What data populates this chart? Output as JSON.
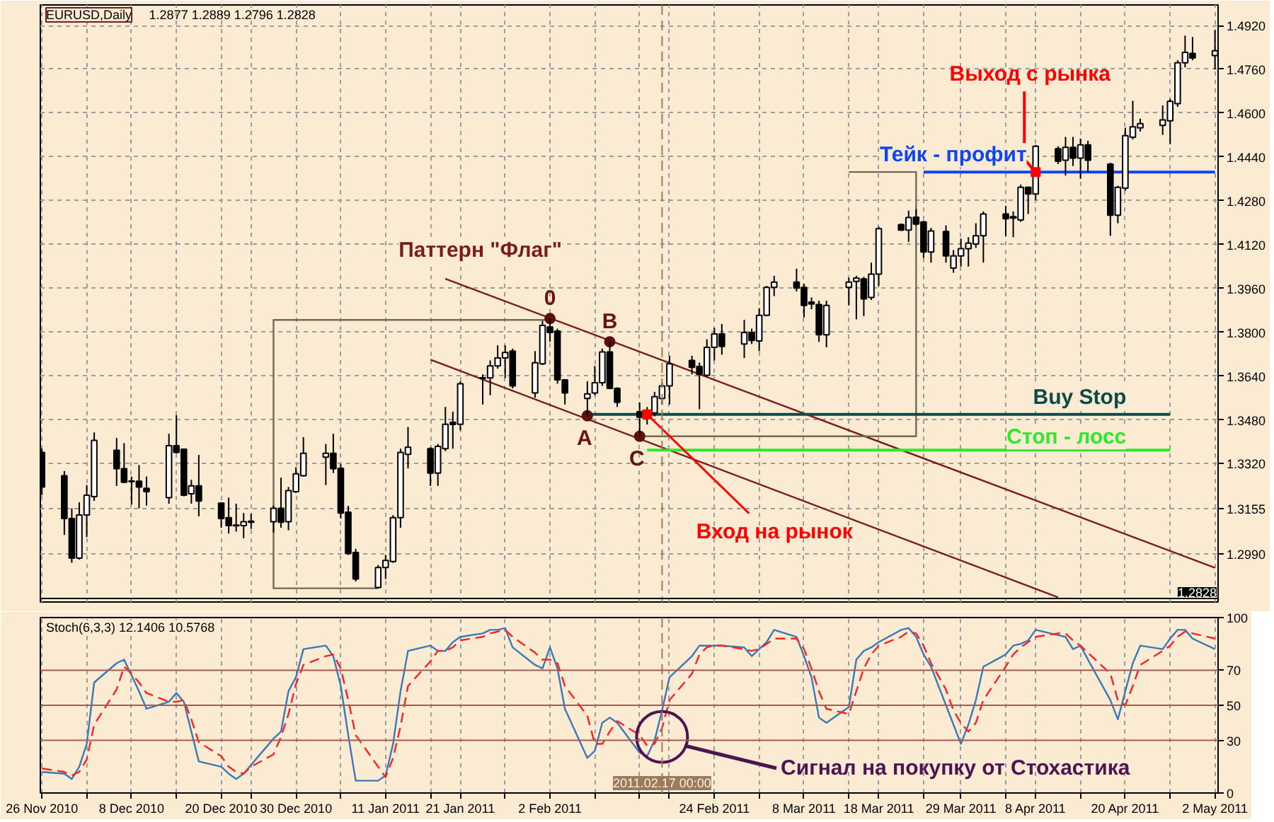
{
  "chart_data": [
    {
      "type": "candlestick",
      "title": "EURUSD,Daily",
      "subtitle": "1.2877 1.2889 1.2796 1.2828",
      "x": [
        "2010-11-26",
        "2010-11-29",
        "2010-11-30",
        "2010-12-01",
        "2010-12-02",
        "2010-12-03",
        "2010-12-06",
        "2010-12-07",
        "2010-12-08",
        "2010-12-09",
        "2010-12-10",
        "2010-12-13",
        "2010-12-14",
        "2010-12-15",
        "2010-12-16",
        "2010-12-17",
        "2010-12-20",
        "2010-12-21",
        "2010-12-22",
        "2010-12-23",
        "2010-12-24",
        "2010-12-27",
        "2010-12-28",
        "2010-12-29",
        "2010-12-30",
        "2010-12-31",
        "2011-01-03",
        "2011-01-04",
        "2011-01-05",
        "2011-01-06",
        "2011-01-07",
        "2011-01-10",
        "2011-01-11",
        "2011-01-12",
        "2011-01-13",
        "2011-01-14",
        "2011-01-17",
        "2011-01-18",
        "2011-01-19",
        "2011-01-20",
        "2011-01-21",
        "2011-01-24",
        "2011-01-25",
        "2011-01-26",
        "2011-01-27",
        "2011-01-28",
        "2011-01-31",
        "2011-02-01",
        "2011-02-02",
        "2011-02-03",
        "2011-02-04",
        "2011-02-07",
        "2011-02-08",
        "2011-02-09",
        "2011-02-10",
        "2011-02-11",
        "2011-02-14",
        "2011-02-15",
        "2011-02-16",
        "2011-02-17",
        "2011-02-18",
        "2011-02-21",
        "2011-02-22",
        "2011-02-23",
        "2011-02-24",
        "2011-02-25",
        "2011-02-28",
        "2011-03-01",
        "2011-03-02",
        "2011-03-03",
        "2011-03-04",
        "2011-03-07",
        "2011-03-08",
        "2011-03-09",
        "2011-03-10",
        "2011-03-11",
        "2011-03-14",
        "2011-03-15",
        "2011-03-16",
        "2011-03-17",
        "2011-03-18",
        "2011-03-21",
        "2011-03-22",
        "2011-03-23",
        "2011-03-24",
        "2011-03-25",
        "2011-03-27",
        "2011-03-28",
        "2011-03-29",
        "2011-03-30",
        "2011-03-31",
        "2011-04-01",
        "2011-04-04",
        "2011-04-05",
        "2011-04-06",
        "2011-04-07",
        "2011-04-08",
        "2011-04-11",
        "2011-04-12",
        "2011-04-13",
        "2011-04-14",
        "2011-04-15",
        "2011-04-18",
        "2011-04-19",
        "2011-04-20",
        "2011-04-21",
        "2011-04-22",
        "2011-04-25",
        "2011-04-26",
        "2011-04-27",
        "2011-04-28",
        "2011-04-29",
        "2011-05-02"
      ],
      "ohlc": [
        [
          1.3361,
          1.3375,
          1.3205,
          1.3235
        ],
        [
          1.3276,
          1.3293,
          1.306,
          1.312
        ],
        [
          1.312,
          1.3157,
          1.2958,
          1.2975
        ],
        [
          1.2975,
          1.3179,
          1.297,
          1.3133
        ],
        [
          1.3133,
          1.3242,
          1.3052,
          1.3205
        ],
        [
          1.32,
          1.3434,
          1.3184,
          1.3405
        ],
        [
          1.3369,
          1.3414,
          1.3239,
          1.3302
        ],
        [
          1.3302,
          1.3395,
          1.3249,
          1.3252
        ],
        [
          1.3257,
          1.3273,
          1.3171,
          1.3255
        ],
        [
          1.3256,
          1.3315,
          1.3157,
          1.3235
        ],
        [
          1.323,
          1.3273,
          1.3167,
          1.3218
        ],
        [
          1.3196,
          1.3429,
          1.3174,
          1.3386
        ],
        [
          1.3386,
          1.3497,
          1.3358,
          1.3361
        ],
        [
          1.3373,
          1.3375,
          1.3201,
          1.3205
        ],
        [
          1.321,
          1.3261,
          1.3174,
          1.3239
        ],
        [
          1.3239,
          1.3352,
          1.3128,
          1.3184
        ],
        [
          1.3176,
          1.3179,
          1.3086,
          1.312
        ],
        [
          1.3123,
          1.3196,
          1.3065,
          1.3094
        ],
        [
          1.3096,
          1.3174,
          1.3072,
          1.3093
        ],
        [
          1.3094,
          1.314,
          1.3048,
          1.3108
        ],
        [
          1.3106,
          1.3137,
          1.3082,
          1.311
        ],
        [
          1.3108,
          1.3167,
          1.3069,
          1.3157
        ],
        [
          1.3157,
          1.3269,
          1.3086,
          1.3106
        ],
        [
          1.3108,
          1.3235,
          1.3077,
          1.3222
        ],
        [
          1.3218,
          1.3307,
          1.3213,
          1.3283
        ],
        [
          1.3276,
          1.3417,
          1.3273,
          1.3358
        ],
        [
          1.3344,
          1.3392,
          1.3242,
          1.3358
        ],
        [
          1.3358,
          1.3429,
          1.3286,
          1.3302
        ],
        [
          1.3303,
          1.3318,
          1.312,
          1.314
        ],
        [
          1.3143,
          1.3166,
          1.2987,
          1.2992
        ],
        [
          1.2996,
          1.3009,
          1.289,
          1.2899
        ],
        [
          1.2868,
          1.295,
          1.2865,
          1.2941
        ],
        [
          1.2941,
          1.2987,
          1.2899,
          1.2967
        ],
        [
          1.2963,
          1.3132,
          1.2958,
          1.3123
        ],
        [
          1.3123,
          1.3375,
          1.3086,
          1.3361
        ],
        [
          1.3354,
          1.3454,
          1.3303,
          1.338
        ],
        [
          1.3375,
          1.338,
          1.3239,
          1.3286
        ],
        [
          1.3286,
          1.3392,
          1.3239,
          1.3383
        ],
        [
          1.3375,
          1.3527,
          1.3366,
          1.3464
        ],
        [
          1.3471,
          1.351,
          1.3375,
          1.3463
        ],
        [
          1.3464,
          1.3621,
          1.3442,
          1.3612
        ],
        [
          1.3634,
          1.3646,
          1.3536,
          1.3631
        ],
        [
          1.3633,
          1.3697,
          1.357,
          1.3677
        ],
        [
          1.3677,
          1.3752,
          1.3667,
          1.3706
        ],
        [
          1.3706,
          1.3752,
          1.3633,
          1.3726
        ],
        [
          1.3731,
          1.374,
          1.3595,
          1.3604
        ],
        [
          1.3578,
          1.3731,
          1.3561,
          1.3689
        ],
        [
          1.3685,
          1.3842,
          1.368,
          1.3825
        ],
        [
          1.3819,
          1.385,
          1.3765,
          1.3799
        ],
        [
          1.3804,
          1.3813,
          1.3612,
          1.3626
        ],
        [
          1.3626,
          1.3629,
          1.3536,
          1.3578
        ],
        [
          1.3558,
          1.3621,
          1.3495,
          1.3575
        ],
        [
          1.3578,
          1.3677,
          1.357,
          1.3616
        ],
        [
          1.3616,
          1.374,
          1.3604,
          1.3728
        ],
        [
          1.3728,
          1.3765,
          1.3592,
          1.3595
        ],
        [
          1.3595,
          1.3599,
          1.3527,
          1.3544
        ],
        [
          1.351,
          1.3544,
          1.342,
          1.349
        ],
        [
          1.3493,
          1.3527,
          1.3463,
          1.3507
        ],
        [
          1.3505,
          1.3582,
          1.3493,
          1.3565
        ],
        [
          1.3558,
          1.3616,
          1.3536,
          1.3604
        ],
        [
          1.3604,
          1.3714,
          1.3536,
          1.3685
        ],
        [
          1.3697,
          1.3714,
          1.3646,
          1.3672
        ],
        [
          1.3675,
          1.3689,
          1.3519,
          1.3646
        ],
        [
          1.3643,
          1.3774,
          1.3638,
          1.3745
        ],
        [
          1.3745,
          1.3816,
          1.3697,
          1.3794
        ],
        [
          1.3794,
          1.383,
          1.3718,
          1.3748
        ],
        [
          1.3757,
          1.3845,
          1.3706,
          1.3799
        ],
        [
          1.3799,
          1.3813,
          1.3757,
          1.377
        ],
        [
          1.3768,
          1.3888,
          1.3731,
          1.3862
        ],
        [
          1.3862,
          1.3969,
          1.3859,
          1.3964
        ],
        [
          1.3964,
          1.4006,
          1.3932,
          1.3983
        ],
        [
          1.3983,
          1.4032,
          1.3949,
          1.3961
        ],
        [
          1.3964,
          1.3977,
          1.3854,
          1.3898
        ],
        [
          1.391,
          1.3927,
          1.3884,
          1.3903
        ],
        [
          1.3901,
          1.3915,
          1.3765,
          1.3791
        ],
        [
          1.3791,
          1.3915,
          1.3745,
          1.3898
        ],
        [
          1.3964,
          1.3999,
          1.3898,
          1.3983
        ],
        [
          1.3986,
          1.4006,
          1.3847,
          1.3998
        ],
        [
          1.3995,
          1.4002,
          1.3859,
          1.3922
        ],
        [
          1.3927,
          1.4054,
          1.3918,
          1.4012
        ],
        [
          1.4012,
          1.4185,
          1.3969,
          1.4178
        ],
        [
          1.4193,
          1.4197,
          1.417,
          1.4173
        ],
        [
          1.4173,
          1.4244,
          1.413,
          1.4219
        ],
        [
          1.422,
          1.4249,
          1.419,
          1.4195
        ],
        [
          1.4203,
          1.4207,
          1.4071,
          1.4093
        ],
        [
          1.4093,
          1.4181,
          1.4054,
          1.417
        ],
        [
          1.4168,
          1.419,
          1.4054,
          1.4079
        ],
        [
          1.4034,
          1.41,
          1.4017,
          1.4079
        ],
        [
          1.4079,
          1.4142,
          1.404,
          1.4105
        ],
        [
          1.4105,
          1.4147,
          1.404,
          1.4125
        ],
        [
          1.4122,
          1.4198,
          1.4108,
          1.4152
        ],
        [
          1.4152,
          1.4241,
          1.4054,
          1.4232
        ],
        [
          1.4232,
          1.4261,
          1.4151,
          1.4214
        ],
        [
          1.4222,
          1.4241,
          1.4147,
          1.4217
        ],
        [
          1.421,
          1.4339,
          1.4203,
          1.4329
        ],
        [
          1.4329,
          1.4332,
          1.4232,
          1.4305
        ],
        [
          1.4305,
          1.4484,
          1.4283,
          1.4479
        ],
        [
          1.447,
          1.4479,
          1.4414,
          1.4424
        ],
        [
          1.4428,
          1.4513,
          1.4372,
          1.4475
        ],
        [
          1.4475,
          1.4513,
          1.4407,
          1.4436
        ],
        [
          1.4436,
          1.4507,
          1.436,
          1.4484
        ],
        [
          1.4484,
          1.4499,
          1.4385,
          1.4428
        ],
        [
          1.4414,
          1.4419,
          1.4152,
          1.4227
        ],
        [
          1.4227,
          1.4334,
          1.4198,
          1.4329
        ],
        [
          1.4326,
          1.4547,
          1.4317,
          1.4518
        ],
        [
          1.4512,
          1.4645,
          1.4504,
          1.455
        ],
        [
          1.4546,
          1.458,
          1.4533,
          1.4562
        ],
        [
          1.4555,
          1.4628,
          1.4521,
          1.4575
        ],
        [
          1.4572,
          1.4652,
          1.4487,
          1.4643
        ],
        [
          1.4635,
          1.4793,
          1.4623,
          1.4784
        ],
        [
          1.4784,
          1.4883,
          1.4767,
          1.4822
        ],
        [
          1.4818,
          1.4878,
          1.4793,
          1.4801
        ],
        [
          1.481,
          1.4903,
          1.4759,
          1.4828
        ]
      ],
      "xlim": [
        "2010-11-25T19:00",
        "2011-05-02T10:00"
      ],
      "xticks": [
        {
          "value": "2010-11-26",
          "label": null
        },
        {
          "value": "2010-12-02",
          "label": null
        },
        {
          "value": "2010-12-08",
          "label": null
        },
        {
          "value": "2010-12-14",
          "label": null
        },
        {
          "value": "2010-12-20",
          "label": null
        },
        {
          "value": "2010-12-24",
          "label": null
        },
        {
          "value": "2010-12-30",
          "label": null
        },
        {
          "value": "2011-01-05",
          "label": null
        },
        {
          "value": "2011-01-11",
          "label": null
        },
        {
          "value": "2011-01-17",
          "label": null
        },
        {
          "value": "2011-01-21",
          "label": null
        },
        {
          "value": "2011-01-27",
          "label": null
        },
        {
          "value": "2011-02-02",
          "label": null
        },
        {
          "value": "2011-02-08",
          "label": null
        },
        {
          "value": "2011-02-14",
          "label": null
        },
        {
          "value": "2011-02-18",
          "label": null
        },
        {
          "value": "2011-02-24",
          "label": null
        },
        {
          "value": "2011-03-02",
          "label": null
        },
        {
          "value": "2011-03-08",
          "label": null
        },
        {
          "value": "2011-03-14",
          "label": null
        },
        {
          "value": "2011-03-18",
          "label": null
        },
        {
          "value": "2011-03-24",
          "label": null
        },
        {
          "value": "2011-03-29",
          "label": null
        },
        {
          "value": "2011-04-04",
          "label": null
        },
        {
          "value": "2011-04-08",
          "label": null
        },
        {
          "value": "2011-04-14",
          "label": null
        },
        {
          "value": "2011-04-20",
          "label": null
        },
        {
          "value": "2011-04-26",
          "label": null
        },
        {
          "value": "2011-05-02",
          "label": null
        }
      ],
      "ylim": [
        1.2815,
        1.4995
      ],
      "yticks": [
        {
          "value": 1.492,
          "label": "1.4920"
        },
        {
          "value": 1.476,
          "label": "1.4760"
        },
        {
          "value": 1.46,
          "label": "1.4600"
        },
        {
          "value": 1.444,
          "label": "1.4440"
        },
        {
          "value": 1.428,
          "label": "1.4280"
        },
        {
          "value": 1.412,
          "label": "1.4120"
        },
        {
          "value": 1.396,
          "label": "1.3960"
        },
        {
          "value": 1.38,
          "label": "1.3800"
        },
        {
          "value": 1.364,
          "label": "1.3640"
        },
        {
          "value": 1.348,
          "label": "1.3480"
        },
        {
          "value": 1.332,
          "label": "1.3320"
        },
        {
          "value": 1.3155,
          "label": "1.3155"
        },
        {
          "value": 1.299,
          "label": "1.2990"
        }
      ],
      "grid": true,
      "tick_labels": "y",
      "series": [
        {
          "name": "Паттерн \"Флаг\"",
          "type": "line",
          "color": "#7b1c1c",
          "x": [
            "2011-01-19",
            "2011-05-02"
          ],
          "values": [
            1.3995,
            1.294
          ]
        },
        {
          "type": "line",
          "color": "#7b1c1c",
          "x": [
            "2011-01-17",
            "2011-04-11"
          ],
          "values": [
            1.37,
            1.2832
          ]
        },
        {
          "type": "line",
          "color": "#6f6b55",
          "x": [
            "2011-02-02",
            "2010-12-27",
            "2010-12-27",
            "2011-01-10"
          ],
          "values": [
            1.3845,
            1.3845,
            1.2865,
            1.2865
          ]
        },
        {
          "type": "line",
          "color": "#6f6b55",
          "x": [
            "2011-02-14",
            "2011-03-23",
            "2011-03-23",
            "2011-03-14"
          ],
          "values": [
            1.342,
            1.342,
            1.4385,
            1.4385
          ]
        },
        {
          "name": "Buy Stop",
          "type": "line",
          "color": "#0d4a4a",
          "x": [
            "2011-02-07",
            "2011-04-26"
          ],
          "values": [
            1.35,
            1.35
          ]
        },
        {
          "name": "Стоп - лосс",
          "type": "line",
          "color": "#2ee82e",
          "x": [
            "2011-02-15",
            "2011-04-26"
          ],
          "values": [
            1.337,
            1.337
          ]
        },
        {
          "name": "Тейк - профит",
          "type": "line",
          "color": "#0b45f5",
          "x": [
            "2011-03-24",
            "2011-05-02"
          ],
          "values": [
            1.4385,
            1.4385
          ]
        },
        {
          "type": "scatter",
          "marker": "circle",
          "color": "#5c0f0f",
          "x": [
            "2011-02-02",
            "2011-02-10",
            "2011-02-07",
            "2011-02-14"
          ],
          "values": [
            1.385,
            1.3765,
            1.3495,
            1.342
          ]
        }
      ],
      "annotations": [
        {
          "text": "0",
          "x": "2011-02-02",
          "y": 1.385
        },
        {
          "text": "B",
          "x": "2011-02-10",
          "y": 1.3765
        },
        {
          "text": "A",
          "x": "2011-02-07",
          "y": 1.3495
        },
        {
          "text": "C",
          "x": "2011-02-14",
          "y": 1.342
        },
        {
          "text": "Вход на рынок",
          "x": "2011-02-15",
          "y": 1.35
        },
        {
          "text": "Выход с рынка",
          "x": "2011-04-08",
          "y": 1.4385
        }
      ],
      "ref_lines": [
        {
          "axis": "x",
          "value": "2011-02-17",
          "line_style": "dashed",
          "color": "#9c7a5e"
        },
        {
          "axis": "y",
          "value": 1.2828,
          "label": "1.2828",
          "color": "#000000"
        }
      ]
    },
    {
      "type": "line",
      "title": "Stoch(6,3,3) 12.1406 10.5768",
      "x": [
        "2010-11-26",
        "2010-11-29",
        "2010-11-30",
        "2010-12-01",
        "2010-12-02",
        "2010-12-03",
        "2010-12-06",
        "2010-12-07",
        "2010-12-08",
        "2010-12-09",
        "2010-12-10",
        "2010-12-13",
        "2010-12-14",
        "2010-12-15",
        "2010-12-16",
        "2010-12-17",
        "2010-12-20",
        "2010-12-21",
        "2010-12-22",
        "2010-12-23",
        "2010-12-24",
        "2010-12-27",
        "2010-12-28",
        "2010-12-29",
        "2010-12-30",
        "2010-12-31",
        "2011-01-03",
        "2011-01-04",
        "2011-01-05",
        "2011-01-06",
        "2011-01-07",
        "2011-01-10",
        "2011-01-11",
        "2011-01-12",
        "2011-01-13",
        "2011-01-14",
        "2011-01-17",
        "2011-01-18",
        "2011-01-19",
        "2011-01-20",
        "2011-01-21",
        "2011-01-24",
        "2011-01-25",
        "2011-01-26",
        "2011-01-27",
        "2011-01-28",
        "2011-01-31",
        "2011-02-01",
        "2011-02-02",
        "2011-02-03",
        "2011-02-04",
        "2011-02-07",
        "2011-02-08",
        "2011-02-09",
        "2011-02-10",
        "2011-02-11",
        "2011-02-14",
        "2011-02-15",
        "2011-02-16",
        "2011-02-17",
        "2011-02-18",
        "2011-02-21",
        "2011-02-22",
        "2011-02-23",
        "2011-02-24",
        "2011-02-25",
        "2011-02-28",
        "2011-03-01",
        "2011-03-02",
        "2011-03-03",
        "2011-03-04",
        "2011-03-07",
        "2011-03-08",
        "2011-03-09",
        "2011-03-10",
        "2011-03-11",
        "2011-03-14",
        "2011-03-15",
        "2011-03-16",
        "2011-03-17",
        "2011-03-18",
        "2011-03-21",
        "2011-03-22",
        "2011-03-23",
        "2011-03-24",
        "2011-03-25",
        "2011-03-27",
        "2011-03-28",
        "2011-03-29",
        "2011-03-30",
        "2011-03-31",
        "2011-04-01",
        "2011-04-04",
        "2011-04-05",
        "2011-04-06",
        "2011-04-07",
        "2011-04-08",
        "2011-04-11",
        "2011-04-12",
        "2011-04-13",
        "2011-04-14",
        "2011-04-15",
        "2011-04-18",
        "2011-04-19",
        "2011-04-20",
        "2011-04-21",
        "2011-04-22",
        "2011-04-25",
        "2011-04-26",
        "2011-04-27",
        "2011-04-28",
        "2011-04-29",
        "2011-05-02"
      ],
      "series": [
        {
          "color": "#3b78b6",
          "values": [
            12,
            11,
            8,
            15,
            28,
            63,
            74,
            76,
            67,
            58,
            48,
            52,
            57,
            52,
            35,
            18,
            15,
            11,
            8,
            11,
            16,
            31,
            35,
            58,
            66,
            82,
            84,
            78,
            61,
            33,
            7,
            7,
            10,
            28,
            58,
            81,
            84,
            81,
            81,
            86,
            89,
            91,
            93,
            93,
            94,
            83,
            73,
            71,
            83,
            71,
            48,
            20,
            24,
            40,
            43,
            40,
            23,
            21,
            30,
            47,
            66,
            78,
            84,
            84,
            84,
            84,
            83,
            78,
            82,
            86,
            93,
            89,
            78,
            66,
            43,
            40,
            49,
            76,
            81,
            83,
            86,
            93,
            94,
            89,
            79,
            72,
            50,
            39,
            28,
            39,
            53,
            72,
            79,
            84,
            85,
            87,
            93,
            90,
            89,
            82,
            84,
            76,
            53,
            42,
            58,
            74,
            84,
            82,
            88,
            93,
            93,
            88,
            82
          ]
        },
        {
          "color": "#ff2020",
          "line_style": "dashed",
          "values": [
            14,
            12,
            10,
            12,
            19,
            39,
            59,
            72,
            68,
            63,
            57,
            52,
            52,
            53,
            42,
            29,
            21,
            15,
            12,
            11,
            15,
            22,
            32,
            45,
            62,
            73,
            78,
            79,
            71,
            53,
            33,
            15,
            9,
            20,
            38,
            61,
            75,
            81,
            81,
            83,
            87,
            89,
            91,
            92,
            93,
            89,
            80,
            76,
            76,
            74,
            61,
            44,
            28,
            28,
            35,
            41,
            33,
            27,
            28,
            37,
            53,
            68,
            79,
            83,
            84,
            84,
            82,
            81,
            82,
            85,
            88,
            88,
            82,
            71,
            58,
            48,
            45,
            58,
            71,
            79,
            84,
            89,
            92,
            91,
            84,
            74,
            59,
            47,
            40,
            35,
            40,
            53,
            72,
            79,
            83,
            86,
            89,
            91,
            91,
            87,
            84,
            80,
            68,
            53,
            50,
            61,
            73,
            81,
            84,
            89,
            92,
            91,
            88
          ]
        },
        {
          "type": "scatter",
          "marker": "circle",
          "color": "#4e1452",
          "x": [
            "2011-02-17"
          ],
          "values": [
            32
          ]
        }
      ],
      "xlim": [
        "2010-11-25T19:00",
        "2011-05-02T10:00"
      ],
      "xticks": [
        {
          "value": "2010-11-26",
          "label": "26 Nov 2010"
        },
        {
          "value": "2010-12-02",
          "label": null
        },
        {
          "value": "2010-12-08",
          "label": "8 Dec 2010"
        },
        {
          "value": "2010-12-14",
          "label": null
        },
        {
          "value": "2010-12-20",
          "label": "20 Dec 2010"
        },
        {
          "value": "2010-12-24",
          "label": null
        },
        {
          "value": "2010-12-30",
          "label": "30 Dec 2010"
        },
        {
          "value": "2011-01-05",
          "label": null
        },
        {
          "value": "2011-01-11",
          "label": "11 Jan 2011"
        },
        {
          "value": "2011-01-17",
          "label": null
        },
        {
          "value": "2011-01-21",
          "label": "21 Jan 2011"
        },
        {
          "value": "2011-01-27",
          "label": null
        },
        {
          "value": "2011-02-02",
          "label": "2 Feb 2011"
        },
        {
          "value": "2011-02-08",
          "label": null
        },
        {
          "value": "2011-02-14",
          "label": null
        },
        {
          "value": "2011-02-18",
          "label": null
        },
        {
          "value": "2011-02-24",
          "label": "24 Feb 2011"
        },
        {
          "value": "2011-03-02",
          "label": null
        },
        {
          "value": "2011-03-08",
          "label": "8 Mar 2011"
        },
        {
          "value": "2011-03-14",
          "label": null
        },
        {
          "value": "2011-03-18",
          "label": "18 Mar 2011"
        },
        {
          "value": "2011-03-24",
          "label": null
        },
        {
          "value": "2011-03-29",
          "label": "29 Mar 2011"
        },
        {
          "value": "2011-04-04",
          "label": null
        },
        {
          "value": "2011-04-08",
          "label": "8 Apr 2011"
        },
        {
          "value": "2011-04-14",
          "label": null
        },
        {
          "value": "2011-04-20",
          "label": "20 Apr 2011"
        },
        {
          "value": "2011-04-26",
          "label": null
        },
        {
          "value": "2011-05-02",
          "label": "2 May 2011"
        }
      ],
      "ylim": [
        0,
        100
      ],
      "yticks": [
        100,
        70,
        50,
        30,
        0
      ],
      "grid": "x",
      "ref_lines": [
        {
          "axis": "x",
          "value": "2011-02-17",
          "label": "2011.02.17 00:00",
          "line_style": "dashed",
          "color": "#9c7a5e"
        },
        {
          "axis": "y",
          "value": 70,
          "color": "#a35d52"
        },
        {
          "axis": "y",
          "value": 50,
          "color": "#a35d52"
        },
        {
          "axis": "y",
          "value": 30,
          "color": "#a35d52"
        }
      ],
      "annotations": [
        {
          "text": "Сигнал на покупку от Стохастика",
          "x": "2011-02-20",
          "y": 27
        }
      ]
    }
  ]
}
